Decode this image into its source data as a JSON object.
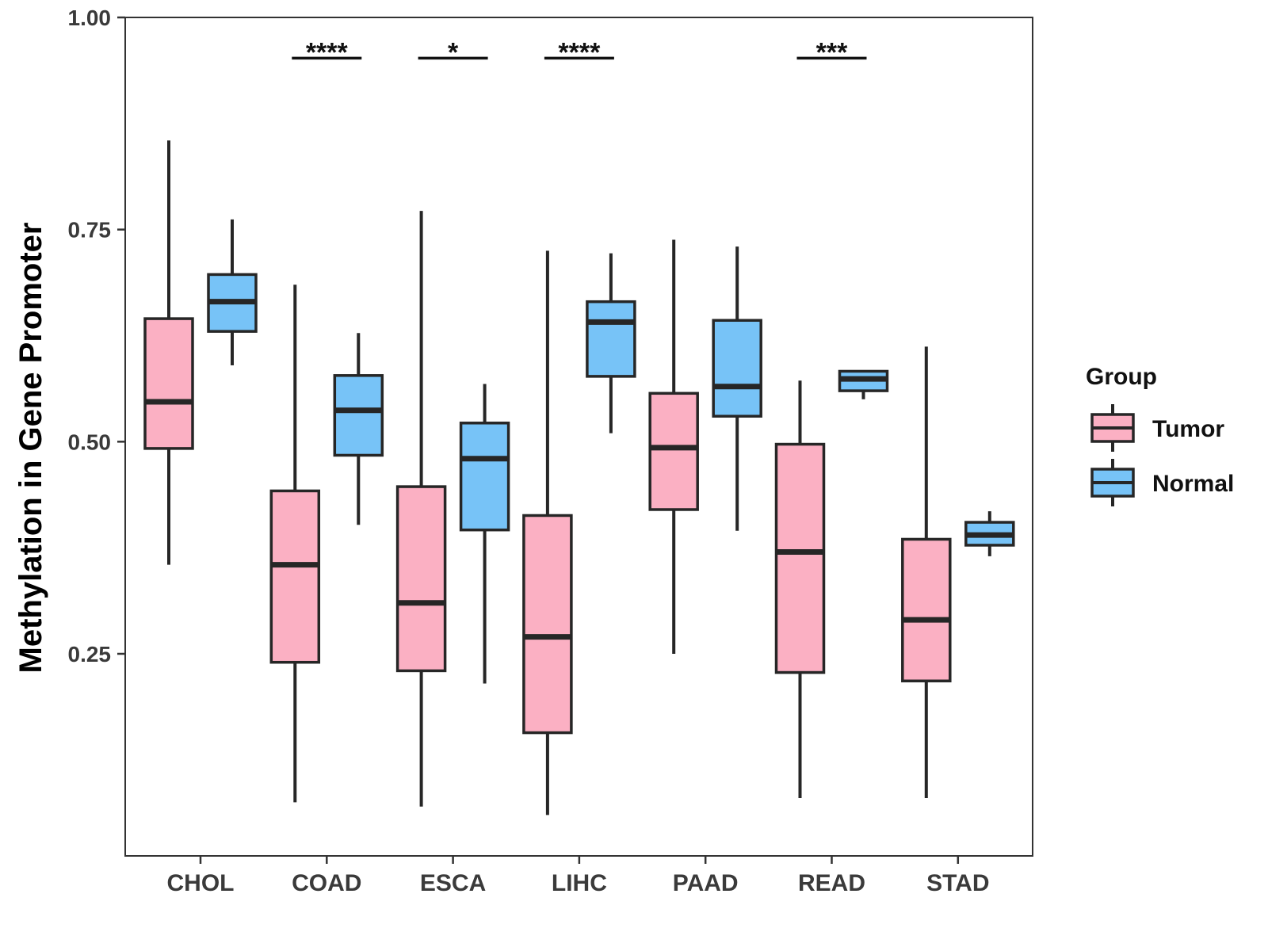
{
  "chart_data": {
    "type": "boxplot",
    "title": "",
    "xlabel": "",
    "ylabel": "Methylation in Gene Promoter",
    "ylim": [
      0.0,
      1.0
    ],
    "yticks": [
      0.25,
      0.5,
      0.75,
      1.0
    ],
    "ytick_labels": [
      "0.25",
      "0.50",
      "0.75",
      "1.00"
    ],
    "categories": [
      "CHOL",
      "COAD",
      "ESCA",
      "LIHC",
      "PAAD",
      "READ",
      "STAD"
    ],
    "series": [
      {
        "name": "Tumor",
        "color": "#FBB0C3",
        "boxes": [
          {
            "min": 0.355,
            "q1": 0.492,
            "median": 0.547,
            "q3": 0.645,
            "max": 0.855
          },
          {
            "min": 0.075,
            "q1": 0.24,
            "median": 0.355,
            "q3": 0.442,
            "max": 0.685
          },
          {
            "min": 0.07,
            "q1": 0.23,
            "median": 0.31,
            "q3": 0.447,
            "max": 0.772
          },
          {
            "min": 0.06,
            "q1": 0.157,
            "median": 0.27,
            "q3": 0.413,
            "max": 0.725
          },
          {
            "min": 0.25,
            "q1": 0.42,
            "median": 0.493,
            "q3": 0.557,
            "max": 0.738
          },
          {
            "min": 0.08,
            "q1": 0.228,
            "median": 0.37,
            "q3": 0.497,
            "max": 0.572
          },
          {
            "min": 0.08,
            "q1": 0.218,
            "median": 0.29,
            "q3": 0.385,
            "max": 0.612
          }
        ]
      },
      {
        "name": "Normal",
        "color": "#77C3F7",
        "boxes": [
          {
            "min": 0.59,
            "q1": 0.63,
            "median": 0.665,
            "q3": 0.697,
            "max": 0.762
          },
          {
            "min": 0.402,
            "q1": 0.484,
            "median": 0.537,
            "q3": 0.578,
            "max": 0.628
          },
          {
            "min": 0.215,
            "q1": 0.396,
            "median": 0.48,
            "q3": 0.522,
            "max": 0.568
          },
          {
            "min": 0.51,
            "q1": 0.577,
            "median": 0.641,
            "q3": 0.665,
            "max": 0.722
          },
          {
            "min": 0.395,
            "q1": 0.53,
            "median": 0.565,
            "q3": 0.643,
            "max": 0.73
          },
          {
            "min": 0.55,
            "q1": 0.56,
            "median": 0.574,
            "q3": 0.583,
            "max": 0.583
          },
          {
            "min": 0.365,
            "q1": 0.378,
            "median": 0.39,
            "q3": 0.405,
            "max": 0.418
          }
        ]
      }
    ],
    "significance": [
      {
        "category": "COAD",
        "label": "****"
      },
      {
        "category": "ESCA",
        "label": "*"
      },
      {
        "category": "LIHC",
        "label": "****"
      },
      {
        "category": "READ",
        "label": "***"
      }
    ],
    "significance_y": 0.952,
    "legend": {
      "title": "Group",
      "position": "right",
      "entries": [
        "Tumor",
        "Normal"
      ]
    }
  }
}
